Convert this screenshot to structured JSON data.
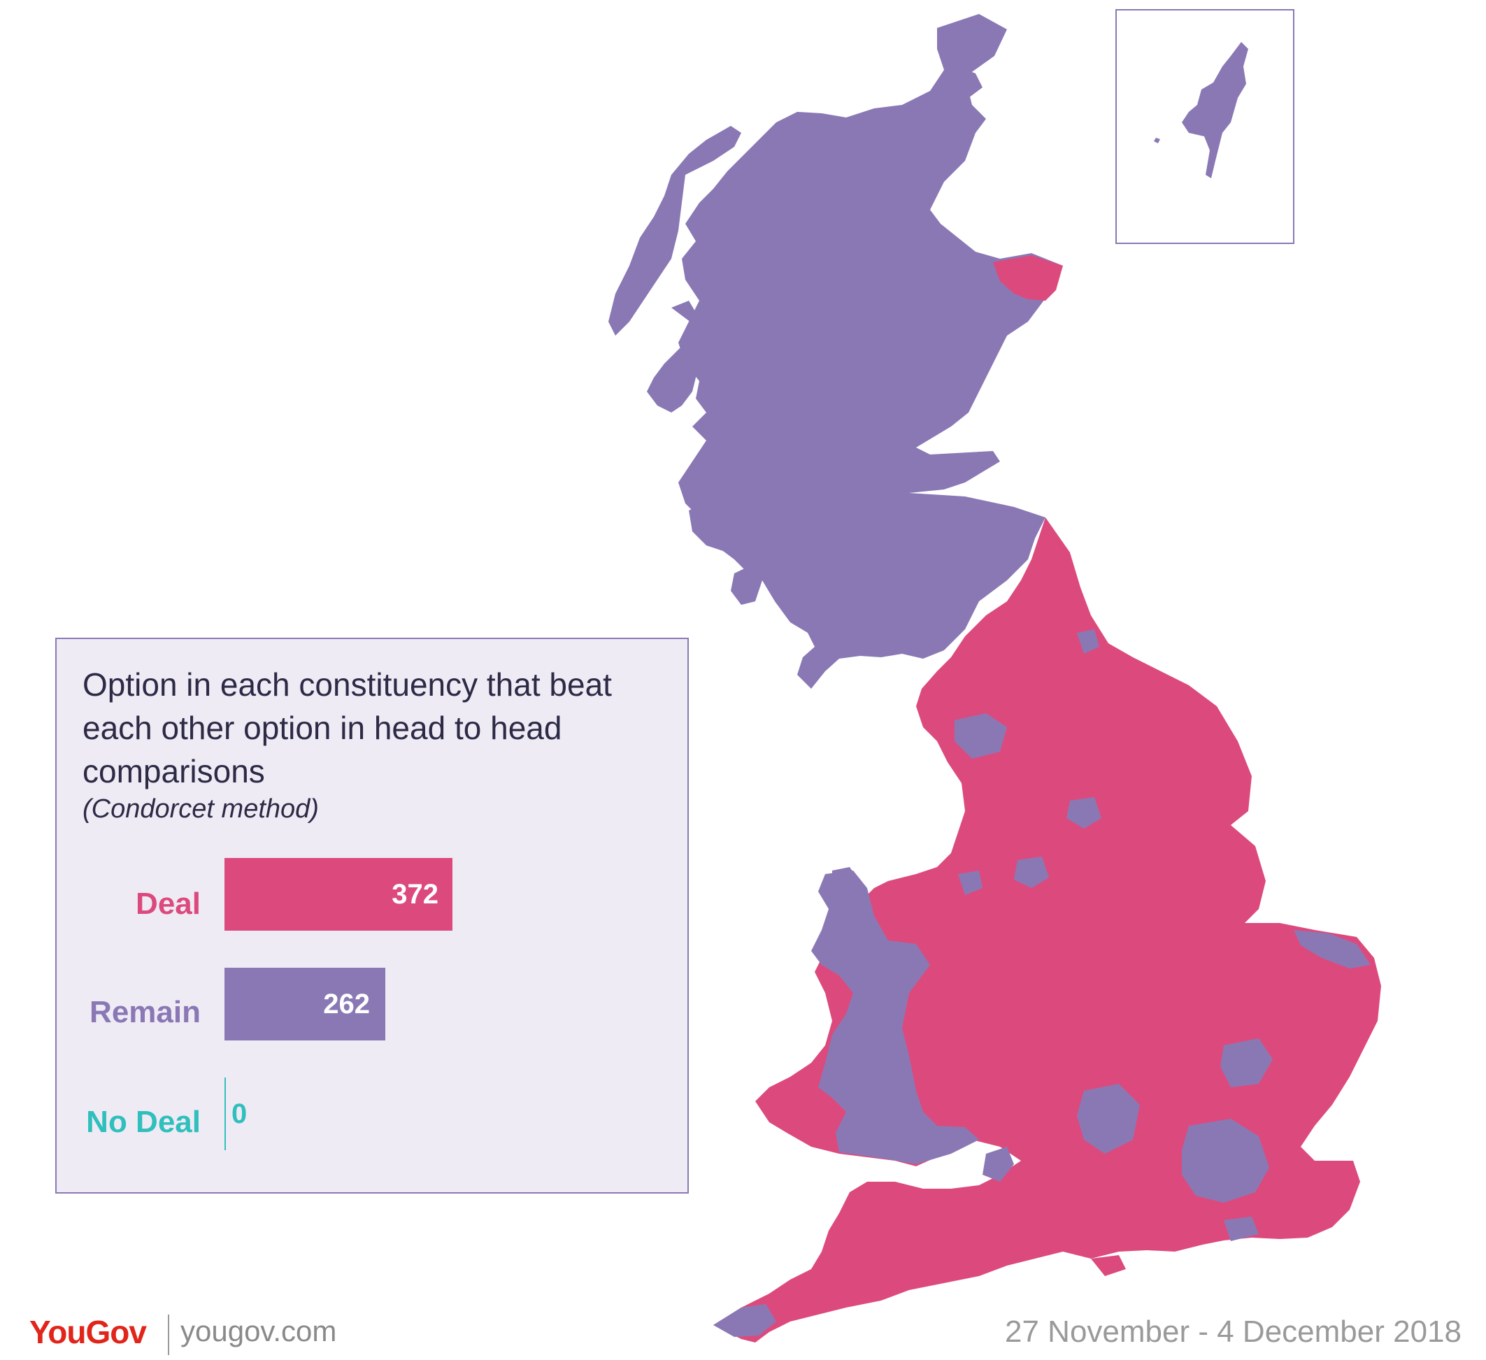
{
  "map": {
    "colors": {
      "deal": "#dc4a7d",
      "remain": "#8a78b5",
      "no_deal": "#2fbfbc",
      "inset_border": "#8a78b5"
    },
    "inset_region": "Shetland"
  },
  "legend": {
    "title": "Option in each constituency that beat each other option in head to head comparisons",
    "subtitle": "(Condorcet method)"
  },
  "chart_data": {
    "type": "bar",
    "categories": [
      "Deal",
      "Remain",
      "No Deal"
    ],
    "values": [
      372,
      262,
      0
    ],
    "colors": [
      "#dc4a7d",
      "#8a78b5",
      "#2fbfbc"
    ],
    "value_labels": [
      "372",
      "262",
      "0"
    ]
  },
  "footer": {
    "brand": "YouGov",
    "url": "yougov.com",
    "date_range": "27 November - 4 December 2018"
  }
}
